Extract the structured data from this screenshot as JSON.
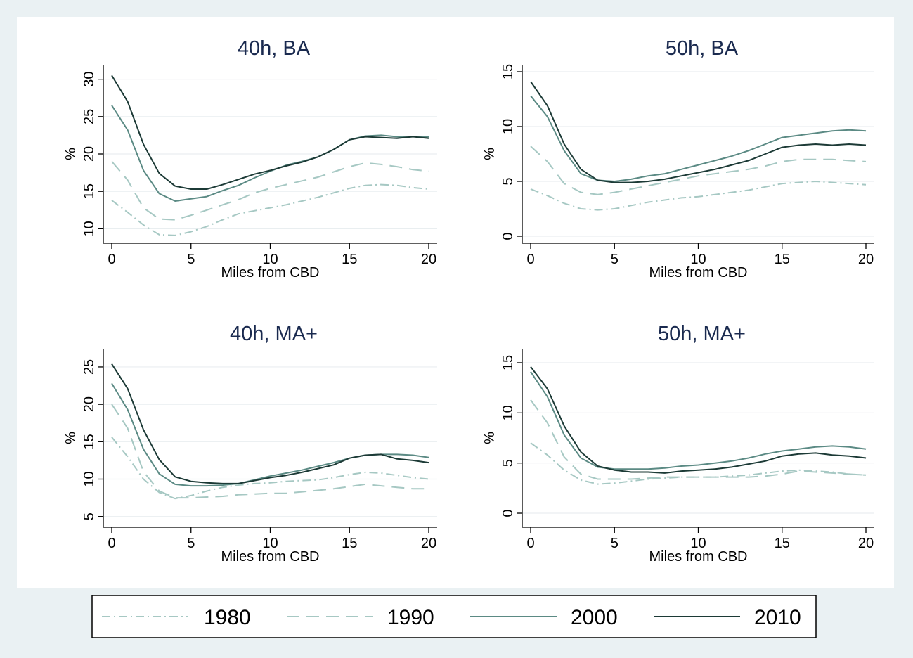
{
  "colors": {
    "background": "#eaf1f3",
    "plot_region": "#ffffff",
    "grid": "#e9eef0",
    "title": "#1a2a4f"
  },
  "chart_data": [
    {
      "type": "line",
      "title": "40h, BA",
      "xlabel": "Miles from CBD",
      "ylabel": "%",
      "xlim": [
        0,
        20
      ],
      "ylim": [
        9,
        31
      ],
      "x_ticks": [
        0,
        5,
        10,
        15,
        20
      ],
      "y_ticks": [
        10,
        15,
        20,
        25,
        30
      ],
      "grid": true,
      "x": [
        0,
        1,
        2,
        3,
        4,
        5,
        6,
        7,
        8,
        9,
        10,
        11,
        12,
        13,
        14,
        15,
        16,
        17,
        18,
        19,
        20
      ],
      "series": [
        {
          "name": "1980",
          "values": [
            13.8,
            12.2,
            10.5,
            9.2,
            9.1,
            9.6,
            10.3,
            11.2,
            12.0,
            12.4,
            12.8,
            13.2,
            13.7,
            14.2,
            14.8,
            15.4,
            15.8,
            15.9,
            15.8,
            15.5,
            15.3
          ]
        },
        {
          "name": "1990",
          "values": [
            19.0,
            16.5,
            12.8,
            11.3,
            11.2,
            11.8,
            12.5,
            13.2,
            13.9,
            14.8,
            15.4,
            15.9,
            16.4,
            16.9,
            17.6,
            18.3,
            18.8,
            18.6,
            18.3,
            17.9,
            17.7
          ]
        },
        {
          "name": "2000",
          "values": [
            26.5,
            23.2,
            17.8,
            14.7,
            13.7,
            14.0,
            14.3,
            15.1,
            15.8,
            16.8,
            17.7,
            18.5,
            19.0,
            19.6,
            20.6,
            21.9,
            22.4,
            22.5,
            22.3,
            22.3,
            22.3
          ]
        },
        {
          "name": "2010",
          "values": [
            30.5,
            27.0,
            21.3,
            17.4,
            15.7,
            15.3,
            15.3,
            15.9,
            16.6,
            17.3,
            17.8,
            18.4,
            18.9,
            19.6,
            20.6,
            21.9,
            22.3,
            22.2,
            22.1,
            22.3,
            22.1
          ]
        }
      ]
    },
    {
      "type": "line",
      "title": "50h, BA",
      "xlabel": "Miles from CBD",
      "ylabel": "%",
      "xlim": [
        0,
        20
      ],
      "ylim": [
        0,
        15
      ],
      "x_ticks": [
        0,
        5,
        10,
        15,
        20
      ],
      "y_ticks": [
        0,
        5,
        10,
        15
      ],
      "grid": true,
      "x": [
        0,
        1,
        2,
        3,
        4,
        5,
        6,
        7,
        8,
        9,
        10,
        11,
        12,
        13,
        14,
        15,
        16,
        17,
        18,
        19,
        20
      ],
      "series": [
        {
          "name": "1980",
          "values": [
            4.3,
            3.7,
            3.0,
            2.5,
            2.4,
            2.5,
            2.8,
            3.1,
            3.3,
            3.5,
            3.6,
            3.8,
            4.0,
            4.2,
            4.5,
            4.8,
            4.9,
            5.0,
            4.9,
            4.8,
            4.7
          ]
        },
        {
          "name": "1990",
          "values": [
            8.2,
            6.8,
            4.8,
            4.0,
            3.8,
            4.0,
            4.3,
            4.6,
            4.9,
            5.2,
            5.5,
            5.7,
            5.9,
            6.1,
            6.4,
            6.8,
            7.0,
            7.0,
            7.0,
            6.9,
            6.8
          ]
        },
        {
          "name": "2000",
          "values": [
            12.8,
            10.9,
            7.8,
            5.7,
            5.1,
            5.0,
            5.2,
            5.5,
            5.7,
            6.1,
            6.5,
            6.9,
            7.3,
            7.8,
            8.4,
            9.0,
            9.2,
            9.4,
            9.6,
            9.7,
            9.6
          ]
        },
        {
          "name": "2010",
          "values": [
            14.1,
            11.9,
            8.4,
            6.1,
            5.1,
            4.9,
            4.9,
            5.0,
            5.2,
            5.5,
            5.8,
            6.1,
            6.5,
            6.9,
            7.5,
            8.1,
            8.3,
            8.4,
            8.3,
            8.4,
            8.3
          ]
        }
      ]
    },
    {
      "type": "line",
      "title": "40h, MA+",
      "xlabel": "Miles from CBD",
      "ylabel": "%",
      "xlim": [
        0,
        20
      ],
      "ylim": [
        4.5,
        26.5
      ],
      "x_ticks": [
        0,
        5,
        10,
        15,
        20
      ],
      "y_ticks": [
        5,
        10,
        15,
        20,
        25
      ],
      "grid": true,
      "x": [
        0,
        1,
        2,
        3,
        4,
        5,
        6,
        7,
        8,
        9,
        10,
        11,
        12,
        13,
        14,
        15,
        16,
        17,
        18,
        19,
        20
      ],
      "series": [
        {
          "name": "1980",
          "values": [
            15.6,
            13.0,
            10.0,
            8.2,
            7.4,
            7.8,
            8.4,
            8.9,
            9.2,
            9.4,
            9.5,
            9.7,
            9.8,
            9.9,
            10.2,
            10.6,
            10.9,
            10.8,
            10.5,
            10.2,
            10.0
          ]
        },
        {
          "name": "1990",
          "values": [
            20.0,
            16.8,
            11.0,
            8.4,
            7.5,
            7.5,
            7.6,
            7.7,
            7.9,
            8.0,
            8.1,
            8.1,
            8.3,
            8.5,
            8.7,
            9.0,
            9.3,
            9.1,
            8.9,
            8.7,
            8.7
          ]
        },
        {
          "name": "2000",
          "values": [
            22.8,
            19.3,
            14.0,
            10.7,
            9.3,
            9.1,
            9.1,
            9.2,
            9.4,
            9.9,
            10.4,
            10.8,
            11.2,
            11.7,
            12.2,
            12.8,
            13.2,
            13.3,
            13.3,
            13.2,
            12.9
          ]
        },
        {
          "name": "2010",
          "values": [
            25.4,
            22.1,
            16.6,
            12.6,
            10.3,
            9.7,
            9.5,
            9.4,
            9.4,
            9.8,
            10.2,
            10.5,
            10.9,
            11.4,
            11.9,
            12.8,
            13.2,
            13.3,
            12.7,
            12.5,
            12.2
          ]
        }
      ]
    },
    {
      "type": "line",
      "title": "50h, MA+",
      "xlabel": "Miles from CBD",
      "ylabel": "%",
      "xlim": [
        0,
        20
      ],
      "ylim": [
        -0.7,
        15.7
      ],
      "x_ticks": [
        0,
        5,
        10,
        15,
        20
      ],
      "y_ticks": [
        0,
        5,
        10,
        15
      ],
      "grid": true,
      "x": [
        0,
        1,
        2,
        3,
        4,
        5,
        6,
        7,
        8,
        9,
        10,
        11,
        12,
        13,
        14,
        15,
        16,
        17,
        18,
        19,
        20
      ],
      "series": [
        {
          "name": "1980",
          "values": [
            7.0,
            5.8,
            4.3,
            3.3,
            2.9,
            3.0,
            3.2,
            3.4,
            3.5,
            3.6,
            3.6,
            3.6,
            3.7,
            3.8,
            4.0,
            4.2,
            4.3,
            4.2,
            4.1,
            3.9,
            3.8
          ]
        },
        {
          "name": "1990",
          "values": [
            11.3,
            9.0,
            5.6,
            3.9,
            3.4,
            3.4,
            3.4,
            3.5,
            3.6,
            3.6,
            3.6,
            3.6,
            3.6,
            3.6,
            3.7,
            3.9,
            4.2,
            4.1,
            4.0,
            3.9,
            3.8
          ]
        },
        {
          "name": "2000",
          "values": [
            14.1,
            11.6,
            7.8,
            5.5,
            4.6,
            4.4,
            4.4,
            4.4,
            4.5,
            4.7,
            4.8,
            5.0,
            5.2,
            5.5,
            5.9,
            6.2,
            6.4,
            6.6,
            6.7,
            6.6,
            6.4
          ]
        },
        {
          "name": "2010",
          "values": [
            14.6,
            12.4,
            8.7,
            6.1,
            4.7,
            4.3,
            4.1,
            4.1,
            4.0,
            4.2,
            4.3,
            4.4,
            4.6,
            4.9,
            5.2,
            5.7,
            5.9,
            6.0,
            5.8,
            5.7,
            5.5
          ]
        }
      ]
    }
  ],
  "legend": {
    "placement": "bottom",
    "items": [
      {
        "label": "1980",
        "color": "#a6c8c3",
        "dash": "dash-dot"
      },
      {
        "label": "1990",
        "color": "#a6c8c3",
        "dash": "dash"
      },
      {
        "label": "2000",
        "color": "#5b8a84",
        "dash": "solid"
      },
      {
        "label": "2010",
        "color": "#1c3a36",
        "dash": "solid"
      }
    ]
  }
}
